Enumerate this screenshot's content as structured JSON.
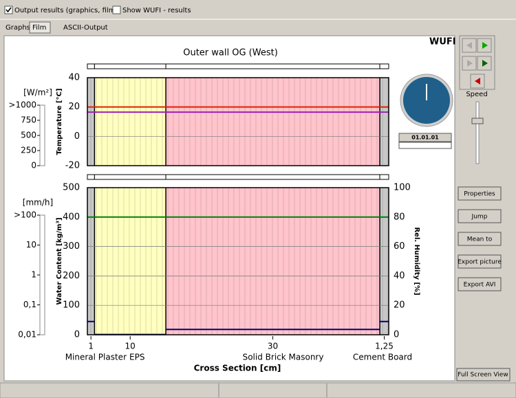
{
  "toolbar": {
    "options": [
      {
        "label": "Output results (graphics, film)",
        "checked": true
      },
      {
        "label": "Show WUFI - results",
        "checked": false
      }
    ]
  },
  "tabs": [
    "Graphs",
    "Film",
    "ASCII-Output"
  ],
  "active_tab": 1,
  "brand": "WUFI",
  "film": {
    "title": "Outer wall OG (West)",
    "x_label": "Cross Section [cm]",
    "layers": [
      {
        "name": "Mineral Plaster",
        "thickness": 1,
        "color": "#c8c8c8"
      },
      {
        "name": "EPS",
        "thickness": 10,
        "color": "#ffffc0"
      },
      {
        "name": "Solid Brick Masonry",
        "thickness": 30,
        "color": "#ffc4cc"
      },
      {
        "name": "Cement Board",
        "thickness": {
          "value": 1.25,
          "label": "1,25"
        },
        "color": "#c8c8c8"
      }
    ],
    "heat_flux": {
      "unit": "[W/m²]",
      "ylim": [
        0,
        1000
      ],
      "yticks": [
        {
          "value": 1000,
          "label": ">1000"
        },
        750,
        500,
        250,
        0
      ]
    },
    "temperature": {
      "y_label": "Temperature [°C]",
      "color": "#e00000",
      "ylim": [
        -20,
        40
      ],
      "yticks": [
        40,
        20,
        0,
        -20
      ],
      "series": [
        {
          "color": "#e02000",
          "values": [
            20,
            20,
            20,
            20
          ]
        },
        {
          "color": "#a020b0",
          "values": [
            16.5,
            16.5,
            16.5,
            16.5
          ]
        }
      ]
    },
    "rain": {
      "unit": "[mm/h]",
      "log": true,
      "ylim": [
        0.01,
        100
      ],
      "yticks": [
        {
          "value": 100,
          "label": ">100"
        },
        10,
        1,
        {
          "value": 0.1,
          "label": "0,1"
        },
        {
          "value": 0.01,
          "label": "0,01"
        }
      ]
    },
    "water_content": {
      "y_label": "Water Content [kg/m³]",
      "color": "#000070",
      "ylim": [
        0,
        500
      ],
      "yticks": [
        500,
        400,
        300,
        200,
        100,
        0
      ],
      "values": [
        45,
        1,
        18,
        45
      ]
    },
    "humidity": {
      "y_label": "Rel. Humidity [%]",
      "color": "#008000",
      "ylim": [
        0,
        100
      ],
      "yticks": [
        100,
        80,
        60,
        40,
        20,
        0
      ],
      "values": [
        80,
        80,
        80,
        80
      ]
    }
  },
  "clock": {
    "date": "01.01.01"
  },
  "controls": {
    "speed": "Speed",
    "buttons": [
      "Properties",
      "Jump",
      "Mean to",
      "Export picture",
      "Export AVI"
    ],
    "full_screen": "Full Screen View"
  }
}
